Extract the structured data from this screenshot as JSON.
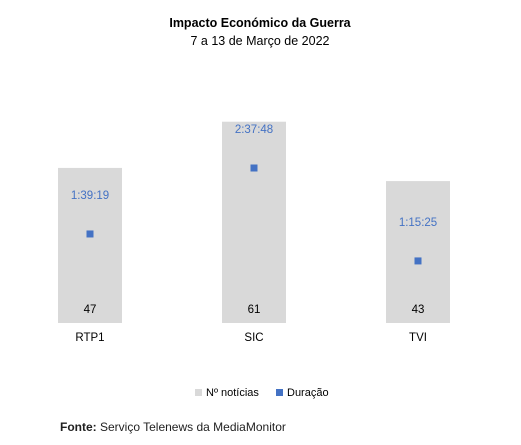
{
  "chart_data": {
    "type": "bar",
    "title": "Impacto Económico da Guerra",
    "subtitle": "7 a 13 de Março de 2022",
    "categories": [
      "RTP1",
      "SIC",
      "TVI"
    ],
    "series": [
      {
        "name": "Nº notícias",
        "type": "bar",
        "values": [
          47,
          61,
          43
        ],
        "labels": [
          "47",
          "61",
          "43"
        ]
      },
      {
        "name": "Duração",
        "type": "marker",
        "values": [
          "1:39:19",
          "2:37:48",
          "1:15:25"
        ],
        "labels": [
          "1:39:19",
          "2:37:48",
          "1:15:25"
        ]
      }
    ],
    "legend_position": "bottom",
    "grid": false,
    "colors": {
      "bars": "#d9d9d9",
      "markers": "#4472c4",
      "duration_labels": "#4472c4"
    }
  },
  "source": {
    "label": "Fonte:",
    "text": " Serviço Telenews da MediaMonitor"
  }
}
